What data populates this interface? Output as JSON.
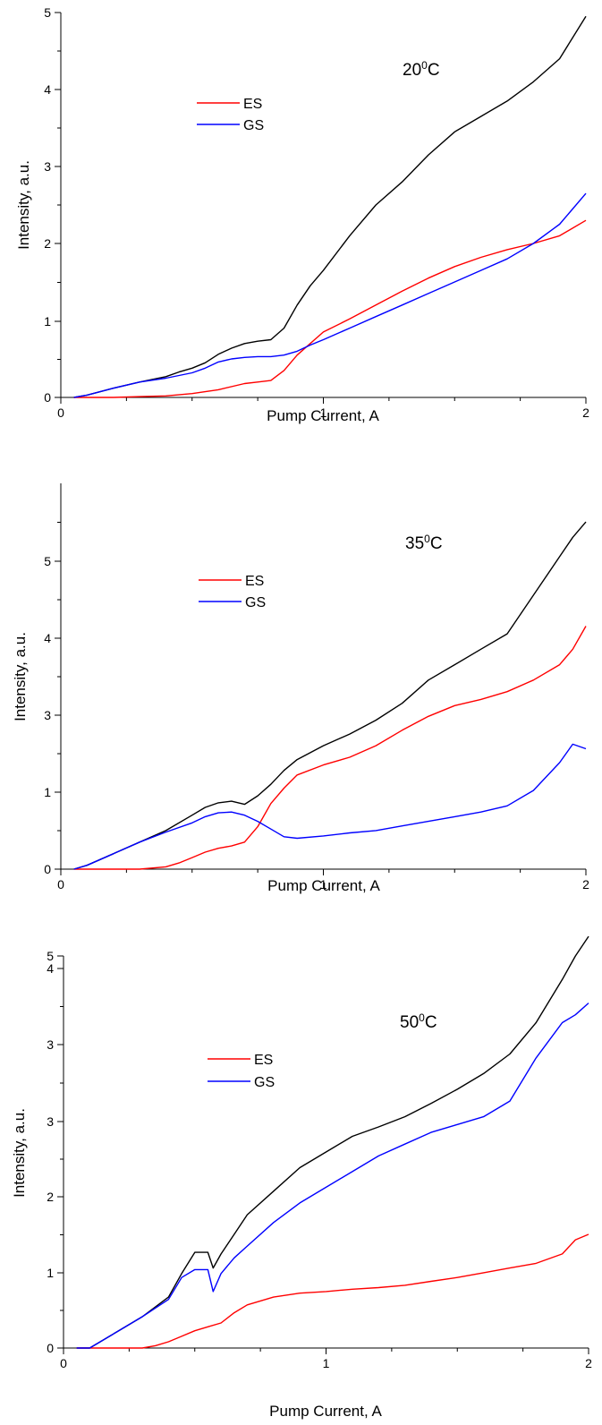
{
  "chart_data": [
    {
      "type": "line",
      "annotation": "20",
      "annotation_sup": "0",
      "annotation_unit": "C",
      "xlabel": "Pump Current, A",
      "ylabel": "Intensity, a.u.",
      "xlim": [
        0,
        2
      ],
      "ylim": [
        0,
        5
      ],
      "xticks": [
        "0",
        "1",
        "2"
      ],
      "yticks": [
        "0",
        "1",
        "2",
        "3",
        "4",
        "5"
      ],
      "grid": false,
      "legend": {
        "placement": "upper-left",
        "entries": [
          "ES",
          "GS"
        ]
      },
      "series": [
        {
          "name": "",
          "color": "#000000",
          "x": [
            0.05,
            0.1,
            0.2,
            0.3,
            0.4,
            0.45,
            0.5,
            0.55,
            0.6,
            0.65,
            0.7,
            0.75,
            0.8,
            0.85,
            0.9,
            0.95,
            1.0,
            1.1,
            1.2,
            1.3,
            1.4,
            1.5,
            1.6,
            1.7,
            1.8,
            1.9,
            2.0
          ],
          "y": [
            0.0,
            0.03,
            0.12,
            0.2,
            0.27,
            0.33,
            0.38,
            0.45,
            0.56,
            0.64,
            0.7,
            0.73,
            0.75,
            0.9,
            1.2,
            1.45,
            1.65,
            2.1,
            2.5,
            2.8,
            3.15,
            3.45,
            3.65,
            3.85,
            4.1,
            4.4,
            4.95
          ]
        },
        {
          "name": "ES",
          "color": "#ff0000",
          "x": [
            0.05,
            0.1,
            0.2,
            0.3,
            0.4,
            0.5,
            0.6,
            0.7,
            0.75,
            0.8,
            0.85,
            0.9,
            0.95,
            1.0,
            1.1,
            1.2,
            1.3,
            1.4,
            1.5,
            1.6,
            1.7,
            1.8,
            1.9,
            2.0
          ],
          "y": [
            0.0,
            0.0,
            0.0,
            0.01,
            0.02,
            0.05,
            0.1,
            0.18,
            0.2,
            0.22,
            0.35,
            0.55,
            0.7,
            0.85,
            1.02,
            1.2,
            1.38,
            1.55,
            1.7,
            1.82,
            1.92,
            2.0,
            2.1,
            2.3
          ]
        },
        {
          "name": "GS",
          "color": "#0000ff",
          "x": [
            0.05,
            0.1,
            0.2,
            0.3,
            0.4,
            0.5,
            0.55,
            0.6,
            0.65,
            0.7,
            0.75,
            0.8,
            0.85,
            0.9,
            0.95,
            1.0,
            1.1,
            1.2,
            1.3,
            1.4,
            1.5,
            1.6,
            1.7,
            1.8,
            1.9,
            2.0
          ],
          "y": [
            0.0,
            0.03,
            0.12,
            0.2,
            0.25,
            0.32,
            0.38,
            0.46,
            0.5,
            0.52,
            0.53,
            0.53,
            0.55,
            0.6,
            0.68,
            0.75,
            0.9,
            1.05,
            1.2,
            1.35,
            1.5,
            1.65,
            1.8,
            2.0,
            2.25,
            2.65
          ]
        }
      ]
    },
    {
      "type": "line",
      "annotation": "35",
      "annotation_sup": "0",
      "annotation_unit": "C",
      "xlabel": "Pump Current, A",
      "ylabel": "Intensity, a.u.",
      "xlim": [
        0,
        2
      ],
      "ylim": [
        0,
        5
      ],
      "xticks": [
        "0",
        "1",
        "2"
      ],
      "yticks": [
        "0",
        "1",
        "3",
        "4",
        "5"
      ],
      "grid": false,
      "legend": {
        "placement": "upper-left",
        "entries": [
          "ES",
          "GS"
        ]
      },
      "series": [
        {
          "name": "",
          "color": "#000000",
          "x": [
            0.05,
            0.1,
            0.2,
            0.3,
            0.4,
            0.5,
            0.55,
            0.6,
            0.65,
            0.7,
            0.75,
            0.8,
            0.85,
            0.9,
            1.0,
            1.1,
            1.2,
            1.3,
            1.4,
            1.5,
            1.6,
            1.7,
            1.8,
            1.9,
            1.95,
            2.0
          ],
          "y": [
            0.0,
            0.05,
            0.2,
            0.35,
            0.5,
            0.7,
            0.8,
            0.86,
            0.88,
            0.84,
            0.95,
            1.1,
            1.28,
            1.42,
            1.6,
            1.75,
            1.93,
            2.15,
            2.45,
            2.65,
            2.85,
            3.05,
            3.55,
            4.05,
            4.3,
            4.5
          ]
        },
        {
          "name": "ES",
          "color": "#ff0000",
          "x": [
            0.05,
            0.1,
            0.2,
            0.3,
            0.4,
            0.45,
            0.5,
            0.55,
            0.6,
            0.65,
            0.7,
            0.75,
            0.8,
            0.85,
            0.9,
            1.0,
            1.1,
            1.2,
            1.3,
            1.4,
            1.5,
            1.6,
            1.7,
            1.8,
            1.9,
            1.95,
            2.0
          ],
          "y": [
            0.0,
            0.0,
            0.0,
            0.0,
            0.03,
            0.08,
            0.15,
            0.22,
            0.27,
            0.3,
            0.35,
            0.55,
            0.85,
            1.05,
            1.22,
            1.35,
            1.45,
            1.6,
            1.8,
            1.98,
            2.12,
            2.2,
            2.3,
            2.45,
            2.65,
            2.85,
            3.15
          ]
        },
        {
          "name": "GS",
          "color": "#0000ff",
          "x": [
            0.05,
            0.1,
            0.2,
            0.3,
            0.4,
            0.5,
            0.55,
            0.6,
            0.65,
            0.7,
            0.75,
            0.8,
            0.85,
            0.9,
            1.0,
            1.1,
            1.2,
            1.3,
            1.4,
            1.5,
            1.6,
            1.7,
            1.8,
            1.9,
            1.95,
            2.0
          ],
          "y": [
            0.0,
            0.05,
            0.2,
            0.35,
            0.48,
            0.6,
            0.68,
            0.73,
            0.74,
            0.7,
            0.62,
            0.52,
            0.42,
            0.4,
            0.43,
            0.47,
            0.5,
            0.56,
            0.62,
            0.68,
            0.74,
            0.82,
            1.02,
            1.38,
            1.62,
            1.56
          ]
        }
      ]
    },
    {
      "type": "line",
      "annotation": "50",
      "annotation_sup": "0",
      "annotation_unit": "C",
      "xlabel": "Pump Current, A",
      "ylabel": "Intensity, a.u.",
      "xlim": [
        0,
        2
      ],
      "ylim": [
        0,
        5
      ],
      "xticks": [
        "0",
        "1",
        "2"
      ],
      "yticks": [
        "0",
        "1",
        "2",
        "3",
        "3",
        "4",
        "5"
      ],
      "grid": false,
      "legend": {
        "placement": "upper-left",
        "entries": [
          "ES",
          "GS"
        ]
      },
      "series": [
        {
          "name": "",
          "color": "#000000",
          "x": [
            0.05,
            0.1,
            0.2,
            0.3,
            0.4,
            0.45,
            0.5,
            0.55,
            0.57,
            0.6,
            0.65,
            0.7,
            0.8,
            0.9,
            1.0,
            1.1,
            1.2,
            1.3,
            1.4,
            1.5,
            1.6,
            1.7,
            1.8,
            1.9,
            1.95,
            2.0
          ],
          "y": [
            0.0,
            0.0,
            0.2,
            0.4,
            0.65,
            0.95,
            1.22,
            1.22,
            1.02,
            1.2,
            1.45,
            1.7,
            2.0,
            2.3,
            2.5,
            2.7,
            2.82,
            2.95,
            3.12,
            3.3,
            3.5,
            3.75,
            4.15,
            4.7,
            5.0,
            5.25
          ]
        },
        {
          "name": "ES",
          "color": "#ff0000",
          "x": [
            0.05,
            0.1,
            0.2,
            0.3,
            0.35,
            0.4,
            0.45,
            0.5,
            0.55,
            0.6,
            0.65,
            0.7,
            0.8,
            0.9,
            1.0,
            1.1,
            1.2,
            1.3,
            1.4,
            1.5,
            1.6,
            1.7,
            1.8,
            1.9,
            1.95,
            2.0
          ],
          "y": [
            0.0,
            0.0,
            0.0,
            0.0,
            0.03,
            0.08,
            0.15,
            0.22,
            0.27,
            0.32,
            0.45,
            0.55,
            0.65,
            0.7,
            0.72,
            0.75,
            0.77,
            0.8,
            0.85,
            0.9,
            0.96,
            1.02,
            1.08,
            1.2,
            1.38,
            1.45
          ]
        },
        {
          "name": "GS",
          "color": "#0000ff",
          "x": [
            0.05,
            0.1,
            0.2,
            0.3,
            0.4,
            0.45,
            0.5,
            0.55,
            0.57,
            0.6,
            0.65,
            0.7,
            0.8,
            0.9,
            1.0,
            1.1,
            1.2,
            1.3,
            1.4,
            1.5,
            1.6,
            1.7,
            1.8,
            1.9,
            1.95,
            2.0
          ],
          "y": [
            0.0,
            0.0,
            0.2,
            0.4,
            0.62,
            0.9,
            1.0,
            1.0,
            0.72,
            0.95,
            1.15,
            1.3,
            1.6,
            1.85,
            2.05,
            2.25,
            2.45,
            2.6,
            2.75,
            2.85,
            2.95,
            3.15,
            3.7,
            4.15,
            4.25,
            4.4
          ]
        }
      ]
    }
  ]
}
